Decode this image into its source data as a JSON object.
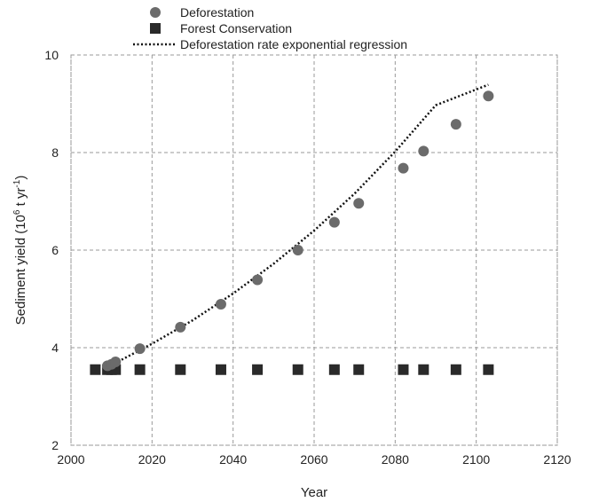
{
  "chart_data": {
    "type": "scatter",
    "xlabel": "Year",
    "ylabel": {
      "prefix": "Sediment yield (10",
      "sup1": "6",
      "middle": " t yr",
      "sup2": "-1",
      "suffix": ")"
    },
    "xlim": [
      2000,
      2120
    ],
    "ylim": [
      2,
      10
    ],
    "x_ticks": [
      "2000",
      "2020",
      "2040",
      "2060",
      "2080",
      "2100",
      "2120"
    ],
    "y_ticks": [
      "2",
      "4",
      "6",
      "8",
      "10"
    ],
    "grid": true,
    "legend_position": "top",
    "series": [
      {
        "name": "Deforestation",
        "marker": "circle",
        "color": "#6b6b6b",
        "points": [
          [
            2009,
            3.63
          ],
          [
            2010,
            3.66
          ],
          [
            2011,
            3.71
          ],
          [
            2017,
            3.98
          ],
          [
            2027,
            4.42
          ],
          [
            2037,
            4.89
          ],
          [
            2046,
            5.39
          ],
          [
            2056,
            6.0
          ],
          [
            2065,
            6.57
          ],
          [
            2071,
            6.96
          ],
          [
            2082,
            7.68
          ],
          [
            2087,
            8.03
          ],
          [
            2095,
            8.58
          ],
          [
            2103,
            9.16
          ]
        ]
      },
      {
        "name": "Forest Conservation",
        "marker": "square",
        "color": "#2a2a2a",
        "points": [
          [
            2006,
            3.55
          ],
          [
            2009,
            3.55
          ],
          [
            2010,
            3.55
          ],
          [
            2011,
            3.55
          ],
          [
            2017,
            3.55
          ],
          [
            2027,
            3.55
          ],
          [
            2037,
            3.55
          ],
          [
            2046,
            3.55
          ],
          [
            2056,
            3.55
          ],
          [
            2065,
            3.55
          ],
          [
            2071,
            3.55
          ],
          [
            2082,
            3.55
          ],
          [
            2087,
            3.55
          ],
          [
            2095,
            3.55
          ],
          [
            2103,
            3.55
          ]
        ]
      },
      {
        "name": "Deforestation rate exponential regression",
        "marker": "dotted-line",
        "color": "#111111",
        "points": [
          [
            2009,
            3.6
          ],
          [
            2020,
            4.08
          ],
          [
            2030,
            4.56
          ],
          [
            2040,
            5.11
          ],
          [
            2050,
            5.72
          ],
          [
            2060,
            6.4
          ],
          [
            2070,
            7.16
          ],
          [
            2080,
            8.02
          ],
          [
            2090,
            8.97
          ],
          [
            2103,
            9.39
          ]
        ]
      }
    ]
  }
}
